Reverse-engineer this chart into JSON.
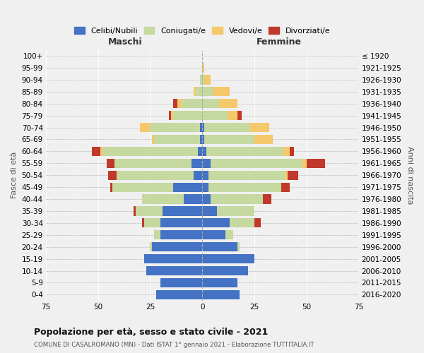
{
  "age_groups": [
    "0-4",
    "5-9",
    "10-14",
    "15-19",
    "20-24",
    "25-29",
    "30-34",
    "35-39",
    "40-44",
    "45-49",
    "50-54",
    "55-59",
    "60-64",
    "65-69",
    "70-74",
    "75-79",
    "80-84",
    "85-89",
    "90-94",
    "95-99",
    "100+"
  ],
  "birth_years": [
    "2016-2020",
    "2011-2015",
    "2006-2010",
    "2001-2005",
    "1996-2000",
    "1991-1995",
    "1986-1990",
    "1981-1985",
    "1976-1980",
    "1971-1975",
    "1966-1970",
    "1961-1965",
    "1956-1960",
    "1951-1955",
    "1946-1950",
    "1941-1945",
    "1936-1940",
    "1931-1935",
    "1926-1930",
    "1921-1925",
    "≤ 1920"
  ],
  "male": {
    "celibi": [
      22,
      20,
      27,
      28,
      24,
      20,
      20,
      19,
      9,
      14,
      4,
      5,
      2,
      1,
      1,
      0,
      0,
      0,
      0,
      0,
      0
    ],
    "coniugati": [
      0,
      0,
      0,
      0,
      1,
      3,
      8,
      13,
      20,
      29,
      37,
      37,
      46,
      22,
      24,
      14,
      10,
      3,
      1,
      0,
      0
    ],
    "vedovi": [
      0,
      0,
      0,
      0,
      0,
      0,
      0,
      0,
      0,
      0,
      0,
      0,
      1,
      1,
      5,
      1,
      2,
      1,
      0,
      0,
      0
    ],
    "divorziati": [
      0,
      0,
      0,
      0,
      0,
      0,
      1,
      1,
      0,
      1,
      4,
      4,
      4,
      0,
      0,
      1,
      2,
      0,
      0,
      0,
      0
    ]
  },
  "female": {
    "nubili": [
      18,
      17,
      22,
      25,
      17,
      11,
      13,
      7,
      4,
      3,
      3,
      4,
      2,
      1,
      1,
      0,
      0,
      0,
      0,
      0,
      0
    ],
    "coniugate": [
      0,
      0,
      0,
      0,
      1,
      4,
      12,
      18,
      25,
      35,
      37,
      44,
      37,
      24,
      22,
      12,
      8,
      5,
      1,
      0,
      0
    ],
    "vedove": [
      0,
      0,
      0,
      0,
      0,
      0,
      0,
      0,
      0,
      0,
      1,
      2,
      3,
      9,
      9,
      5,
      9,
      8,
      3,
      1,
      0
    ],
    "divorziate": [
      0,
      0,
      0,
      0,
      0,
      0,
      3,
      0,
      4,
      4,
      5,
      9,
      2,
      0,
      0,
      2,
      0,
      0,
      0,
      0,
      0
    ]
  },
  "colors": {
    "celibi": "#4472c4",
    "coniugati": "#c5d9a0",
    "vedovi": "#f5c96b",
    "divorziati": "#c0392b"
  },
  "xlim": 75,
  "title": "Popolazione per età, sesso e stato civile - 2021",
  "subtitle": "COMUNE DI CASALROMANO (MN) - Dati ISTAT 1° gennaio 2021 - Elaborazione TUTTITALIA.IT",
  "ylabel_left": "Fasce di età",
  "ylabel_right": "Anni di nascita",
  "xlabel_left": "Maschi",
  "xlabel_right": "Femmine",
  "bg_color": "#f0f0f0"
}
